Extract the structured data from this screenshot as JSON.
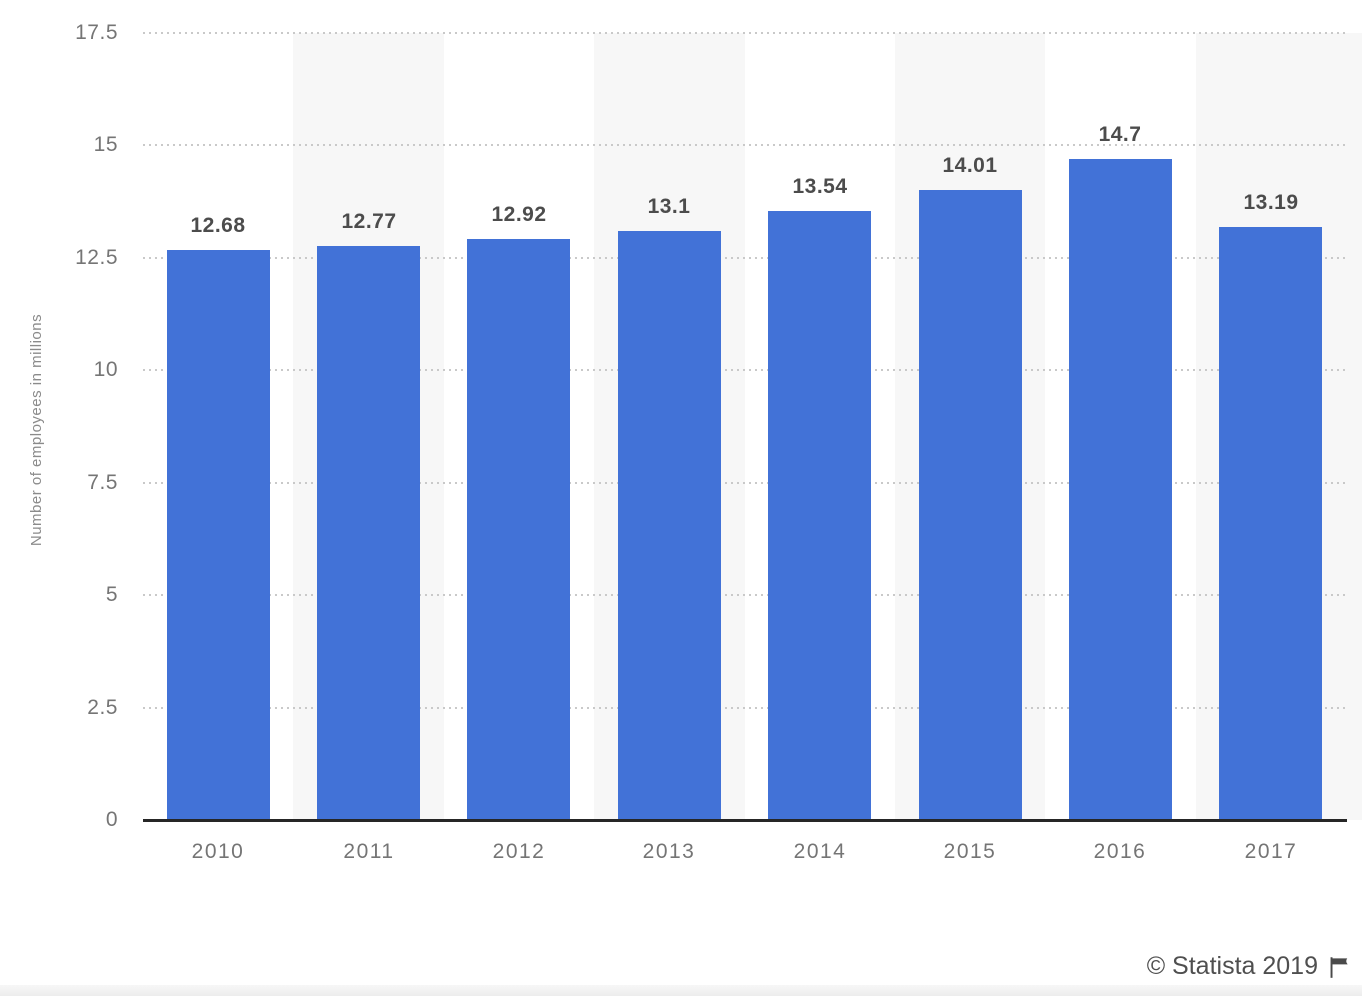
{
  "chart_data": {
    "type": "bar",
    "categories": [
      "2010",
      "2011",
      "2012",
      "2013",
      "2014",
      "2015",
      "2016",
      "2017"
    ],
    "values": [
      12.68,
      12.77,
      12.92,
      13.1,
      13.54,
      14.01,
      14.7,
      13.19
    ],
    "value_labels": [
      "12.68",
      "12.77",
      "12.92",
      "13.1",
      "13.54",
      "14.01",
      "14.7",
      "13.19"
    ],
    "title": "",
    "xlabel": "",
    "ylabel": "Number of employees in millions",
    "ylim": [
      0,
      17.5
    ],
    "yticks": [
      0,
      2.5,
      5,
      7.5,
      10,
      12.5,
      15,
      17.5
    ],
    "ytick_labels": [
      "0",
      "2.5",
      "5",
      "7.5",
      "10",
      "12.5",
      "15",
      "17.5"
    ],
    "grid": "horizontal dotted",
    "legend": "none",
    "bar_color": "#4272d7",
    "band_color": "#f7f7f7",
    "band_pattern": "alternating vertical bands behind odd-index categories"
  },
  "footer": {
    "copyright": "© Statista 2019",
    "icon": "flag-icon"
  },
  "colors": {
    "bar": "#4272d7",
    "plot_band": "#f7f7f7",
    "gridline": "#c9c9c9",
    "axis_line": "#262626",
    "tick_text": "#757575",
    "value_text": "#4c4c4c",
    "axis_title_text": "#8b8b8b",
    "footer_text": "#4f4f4f"
  }
}
